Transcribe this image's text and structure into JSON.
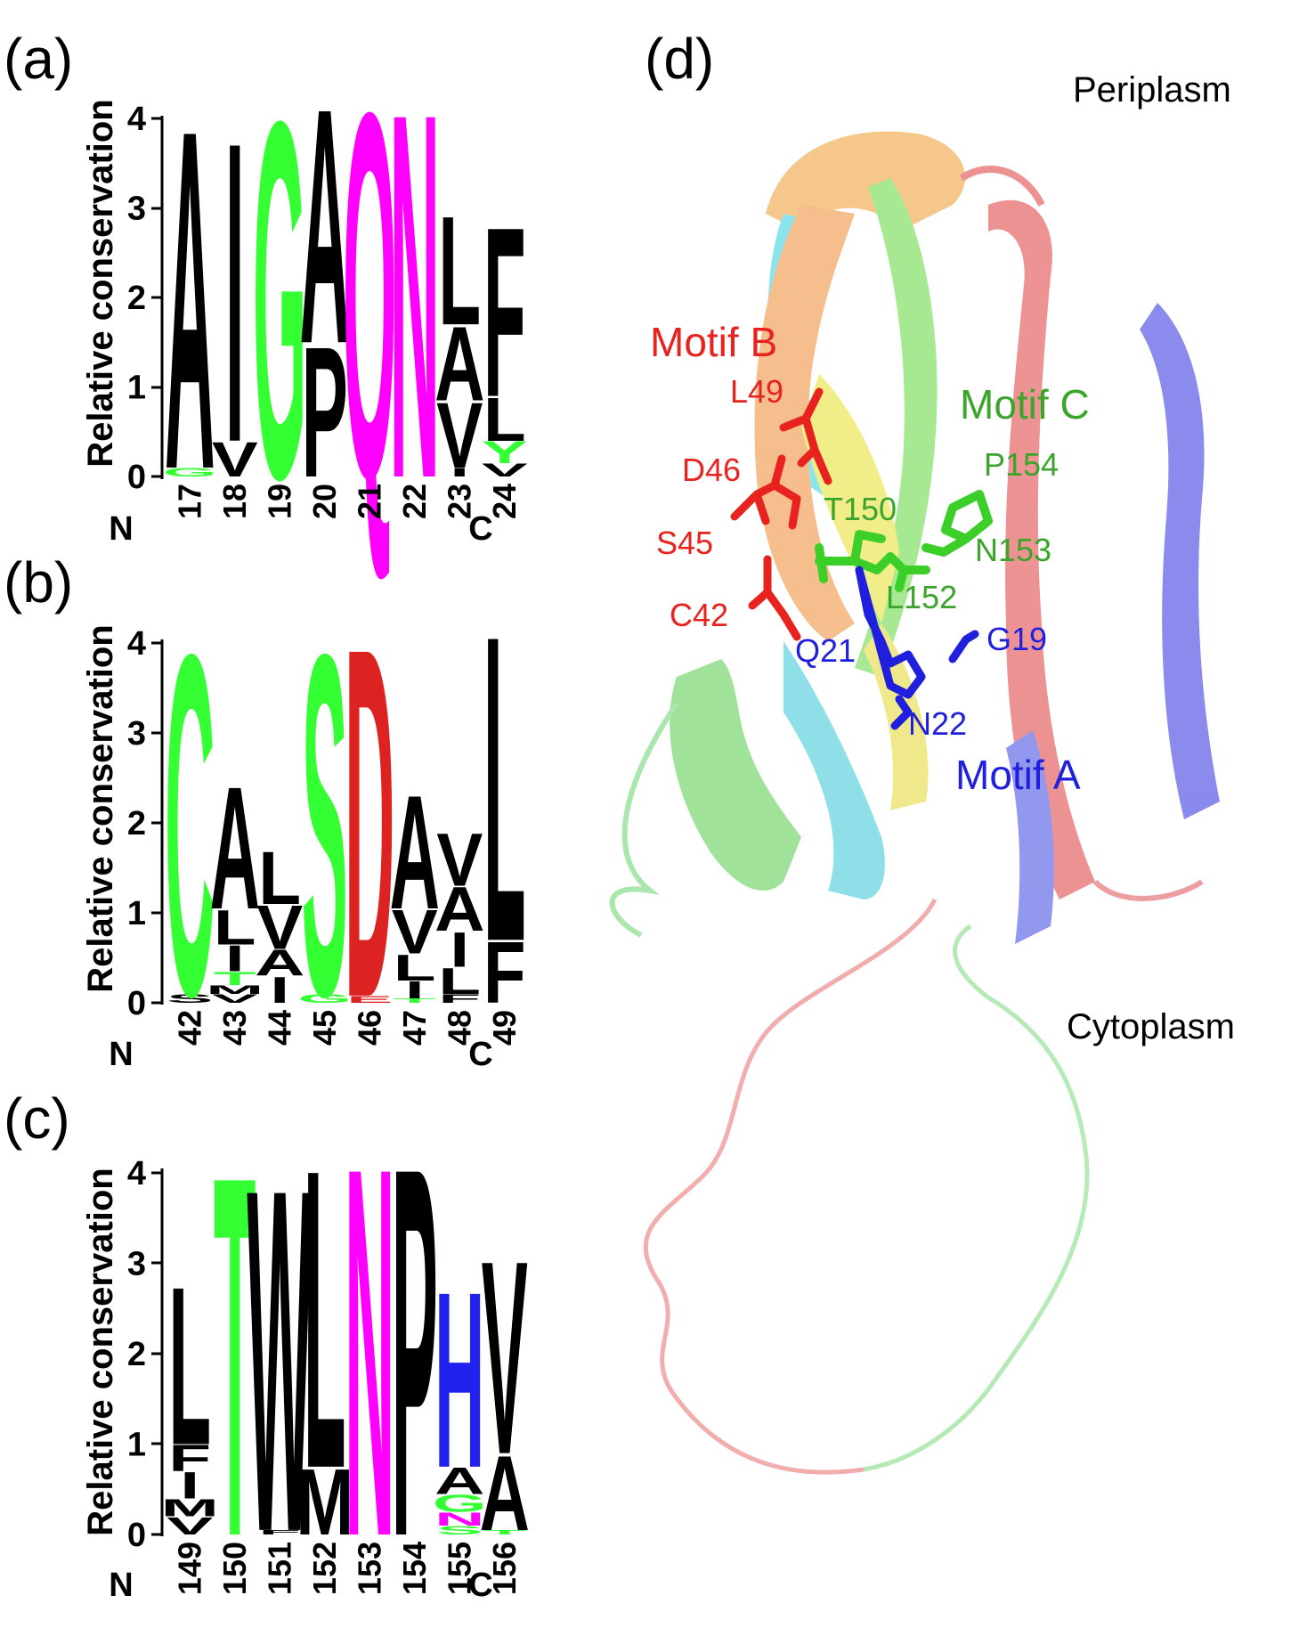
{
  "panels": [
    {
      "label": "(a)",
      "ylabel": "Relative conservation",
      "n_term": "N",
      "c_term": "C",
      "yticks": [
        "0",
        "1",
        "2",
        "3",
        "4"
      ],
      "positions": [
        "17",
        "18",
        "19",
        "20",
        "21",
        "22",
        "23",
        "24"
      ],
      "stacks": [
        [
          {
            "l": "A",
            "h": 3.9,
            "c": "#000000"
          },
          {
            "l": "G",
            "h": 0.1,
            "c": "#33ff33"
          }
        ],
        [
          {
            "l": "I",
            "h": 3.45,
            "c": "#000000"
          },
          {
            "l": "V",
            "h": 0.4,
            "c": "#000000"
          }
        ],
        [
          {
            "l": "G",
            "h": 4.1,
            "c": "#33ff33"
          }
        ],
        [
          {
            "l": "A",
            "h": 2.7,
            "c": "#000000"
          },
          {
            "l": "P",
            "h": 1.5,
            "c": "#000000"
          }
        ],
        [
          {
            "l": "Q",
            "h": 4.2,
            "c": "#ff00ff"
          }
        ],
        [
          {
            "l": "N",
            "h": 4.2,
            "c": "#ff00ff"
          }
        ],
        [
          {
            "l": "L",
            "h": 1.25,
            "c": "#000000"
          },
          {
            "l": "A",
            "h": 0.85,
            "c": "#000000"
          },
          {
            "l": "V",
            "h": 0.75,
            "c": "#000000"
          },
          {
            "l": "I",
            "h": 0.1,
            "c": "#000000"
          }
        ],
        [
          {
            "l": "F",
            "h": 1.95,
            "c": "#000000"
          },
          {
            "l": "L",
            "h": 0.5,
            "c": "#000000"
          },
          {
            "l": "Y",
            "h": 0.25,
            "c": "#33ff33"
          },
          {
            "l": "V",
            "h": 0.15,
            "c": "#000000"
          }
        ]
      ]
    },
    {
      "label": "(b)",
      "ylabel": "Relative conservation",
      "n_term": "N",
      "c_term": "C",
      "yticks": [
        "0",
        "1",
        "2",
        "3",
        "4"
      ],
      "positions": [
        "42",
        "43",
        "44",
        "45",
        "46",
        "47",
        "48",
        "49"
      ],
      "stacks": [
        [
          {
            "l": "C",
            "h": 3.9,
            "c": "#33ff33"
          },
          {
            "l": "S",
            "h": 0.1,
            "c": "#000000"
          }
        ],
        [
          {
            "l": "A",
            "h": 1.4,
            "c": "#000000"
          },
          {
            "l": "L",
            "h": 0.4,
            "c": "#000000"
          },
          {
            "l": "I",
            "h": 0.3,
            "c": "#000000"
          },
          {
            "l": "T",
            "h": 0.15,
            "c": "#33ff33"
          },
          {
            "l": "M",
            "h": 0.1,
            "c": "#000000"
          },
          {
            "l": "V",
            "h": 0.1,
            "c": "#000000"
          }
        ],
        [
          {
            "l": "L",
            "h": 0.6,
            "c": "#000000"
          },
          {
            "l": "V",
            "h": 0.5,
            "c": "#000000"
          },
          {
            "l": "A",
            "h": 0.3,
            "c": "#000000"
          },
          {
            "l": "I",
            "h": 0.3,
            "c": "#000000"
          }
        ],
        [
          {
            "l": "S",
            "h": 3.9,
            "c": "#33ff33"
          },
          {
            "l": "G",
            "h": 0.1,
            "c": "#33ff33"
          }
        ],
        [
          {
            "l": "D",
            "h": 4.0,
            "c": "#dd2222"
          },
          {
            "l": "E",
            "h": 0.08,
            "c": "#dd2222"
          }
        ],
        [
          {
            "l": "A",
            "h": 1.3,
            "c": "#000000"
          },
          {
            "l": "V",
            "h": 0.5,
            "c": "#000000"
          },
          {
            "l": "L",
            "h": 0.3,
            "c": "#000000"
          },
          {
            "l": "I",
            "h": 0.2,
            "c": "#000000"
          },
          {
            "l": "T",
            "h": 0.05,
            "c": "#33ff33"
          }
        ],
        [
          {
            "l": "V",
            "h": 0.6,
            "c": "#000000"
          },
          {
            "l": "A",
            "h": 0.5,
            "c": "#000000"
          },
          {
            "l": "I",
            "h": 0.4,
            "c": "#000000"
          },
          {
            "l": "L",
            "h": 0.3,
            "c": "#000000"
          },
          {
            "l": "F",
            "h": 0.1,
            "c": "#000000"
          }
        ],
        [
          {
            "l": "L",
            "h": 3.5,
            "c": "#000000"
          },
          {
            "l": "F",
            "h": 0.7,
            "c": "#000000"
          }
        ]
      ]
    },
    {
      "label": "(c)",
      "ylabel": "Relative conservation",
      "n_term": "N",
      "c_term": "C",
      "yticks": [
        "0",
        "1",
        "2",
        "3",
        "4"
      ],
      "positions": [
        "149",
        "150",
        "151",
        "152",
        "153",
        "154",
        "155",
        "156"
      ],
      "stacks": [
        [
          {
            "l": "L",
            "h": 1.8,
            "c": "#000000"
          },
          {
            "l": "F",
            "h": 0.3,
            "c": "#000000"
          },
          {
            "l": "I",
            "h": 0.3,
            "c": "#000000"
          },
          {
            "l": "M",
            "h": 0.2,
            "c": "#000000"
          },
          {
            "l": "V",
            "h": 0.2,
            "c": "#000000"
          }
        ],
        [
          {
            "l": "T",
            "h": 4.1,
            "c": "#33ff33"
          }
        ],
        [
          {
            "l": "W",
            "h": 3.9,
            "c": "#000000"
          },
          {
            "l": "F",
            "h": 0.05,
            "c": "#000000"
          }
        ],
        [
          {
            "l": "L",
            "h": 3.4,
            "c": "#000000"
          },
          {
            "l": "M",
            "h": 0.75,
            "c": "#000000"
          }
        ],
        [
          {
            "l": "N",
            "h": 4.2,
            "c": "#ff00ff"
          }
        ],
        [
          {
            "l": "P",
            "h": 4.2,
            "c": "#000000"
          }
        ],
        [
          {
            "l": "H",
            "h": 2.0,
            "c": "#2222ee"
          },
          {
            "l": "A",
            "h": 0.3,
            "c": "#000000"
          },
          {
            "l": "G",
            "h": 0.2,
            "c": "#33ff33"
          },
          {
            "l": "N",
            "h": 0.15,
            "c": "#ff00ff"
          },
          {
            "l": "S",
            "h": 0.1,
            "c": "#33ff33"
          }
        ],
        [
          {
            "l": "V",
            "h": 2.2,
            "c": "#000000"
          },
          {
            "l": "A",
            "h": 0.85,
            "c": "#000000"
          },
          {
            "l": "T",
            "h": 0.05,
            "c": "#33ff33"
          }
        ]
      ]
    }
  ],
  "structure": {
    "panel_label": "(d)",
    "top_label": "Periplasm",
    "bottom_label": "Cytoplasm",
    "motifs": [
      {
        "name": "Motif B",
        "color": "#e8231f",
        "residues": [
          "L49",
          "D46",
          "S45",
          "C42"
        ]
      },
      {
        "name": "Motif C",
        "color": "#3aa52a",
        "residues": [
          "P154",
          "T150",
          "N153",
          "L152"
        ]
      },
      {
        "name": "Motif A",
        "color": "#1f1fdd",
        "residues": [
          "Q21",
          "G19",
          "N22"
        ]
      }
    ]
  }
}
